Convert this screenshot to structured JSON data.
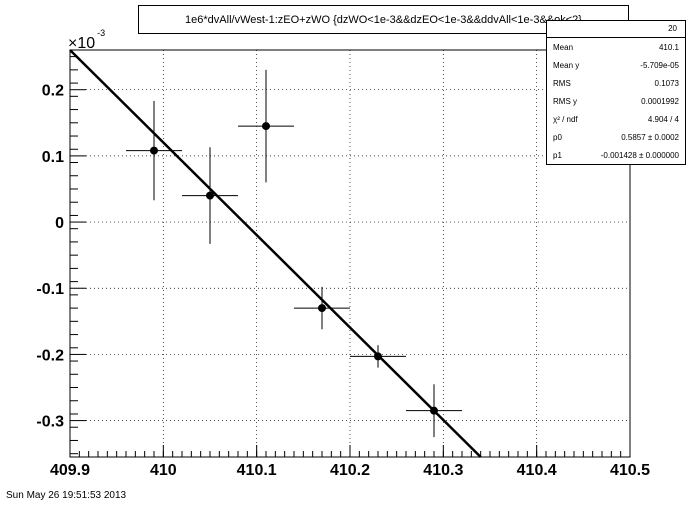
{
  "title": "1e6*dvAll/vWest-1:zEO+zWO {dzWO<1e-3&&dzEO<1e-3&&ddvAll<1e-3&&ok<2}",
  "footer": "Sun May 26 19:51:53 2013",
  "stats": {
    "entries": "20",
    "rows": [
      {
        "label": "Mean",
        "value": "410.1"
      },
      {
        "label": "Mean y",
        "value": "-5.709e-05"
      },
      {
        "label": "RMS",
        "value": "0.1073"
      },
      {
        "label": "RMS y",
        "value": "0.0001992"
      },
      {
        "label": "χ² / ndf",
        "value": "4.904 / 4"
      },
      {
        "label": "p0",
        "value": "0.5857 ± 0.0002"
      },
      {
        "label": "p1",
        "value": "-0.001428 ± 0.000000"
      }
    ]
  },
  "chart_data": {
    "type": "scatter",
    "xlim": [
      409.9,
      410.5
    ],
    "ylim": [
      -0.355,
      0.26
    ],
    "y_multiplier_label": "×10",
    "y_multiplier_exp": "-3",
    "x_ticks": [
      "409.9",
      "410",
      "410.1",
      "410.2",
      "410.3",
      "410.4",
      "410.5"
    ],
    "y_ticks": [
      "0.2",
      "0.1",
      "0",
      "-0.1",
      "-0.2",
      "-0.3"
    ],
    "x_tick_values": [
      409.9,
      410.0,
      410.1,
      410.2,
      410.3,
      410.4,
      410.5
    ],
    "y_tick_values": [
      0.2,
      0.1,
      0.0,
      -0.1,
      -0.2,
      -0.3
    ],
    "grid": true,
    "points": [
      {
        "x": 409.99,
        "y": 0.108,
        "ex": 0.03,
        "ey_lo": 0.075,
        "ey_hi": 0.075
      },
      {
        "x": 410.05,
        "y": 0.04,
        "ex": 0.03,
        "ey_lo": 0.073,
        "ey_hi": 0.073
      },
      {
        "x": 410.11,
        "y": 0.145,
        "ex": 0.03,
        "ey_lo": 0.085,
        "ey_hi": 0.085
      },
      {
        "x": 410.17,
        "y": -0.13,
        "ex": 0.03,
        "ey_lo": 0.032,
        "ey_hi": 0.032
      },
      {
        "x": 410.23,
        "y": -0.203,
        "ex": 0.03,
        "ey_lo": 0.017,
        "ey_hi": 0.017
      },
      {
        "x": 410.29,
        "y": -0.285,
        "ex": 0.03,
        "ey_lo": 0.04,
        "ey_hi": 0.04
      }
    ],
    "fit_line": {
      "x_start": 409.9,
      "y_start": 0.26,
      "x_end": 410.34,
      "y_end": -0.355
    }
  }
}
